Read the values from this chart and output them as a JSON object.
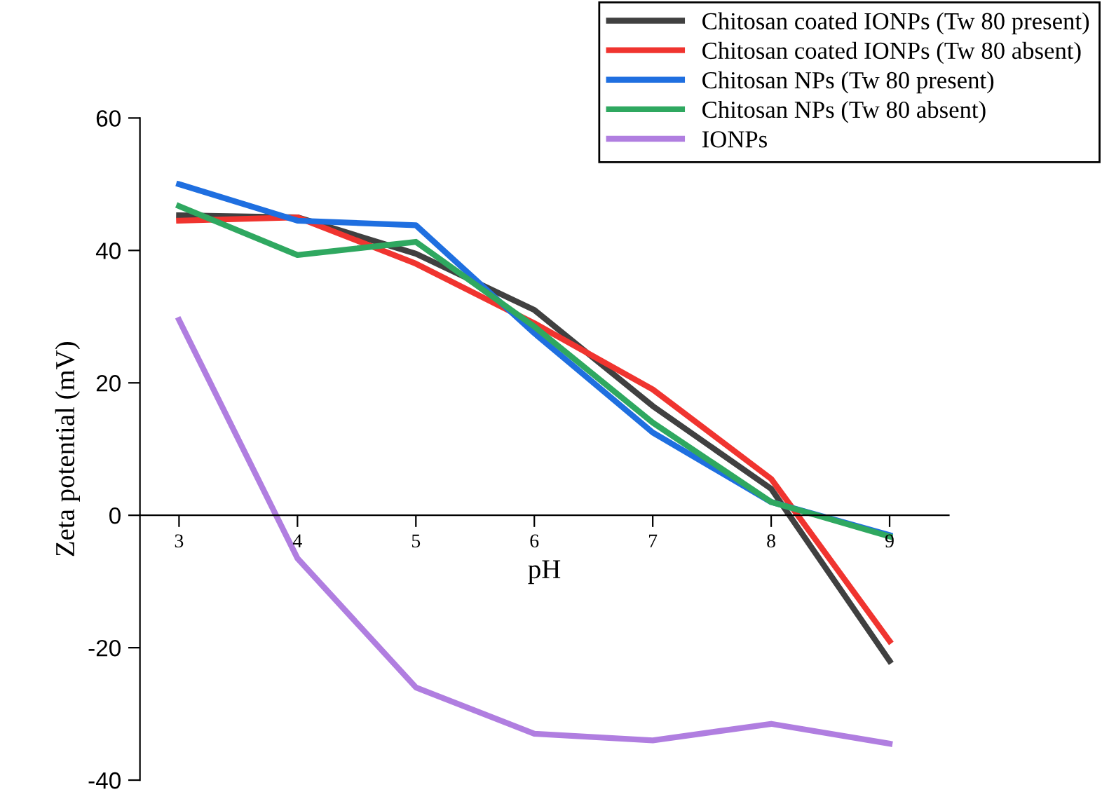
{
  "chart_data": {
    "type": "line",
    "xlabel": "pH",
    "ylabel": "Zeta potential (mV)",
    "x": [
      3,
      4,
      5,
      6,
      7,
      8,
      9
    ],
    "xlim": [
      2.67,
      9.5
    ],
    "xticks": [
      3,
      4,
      5,
      6,
      7,
      8,
      9
    ],
    "ylim": [
      -40,
      60
    ],
    "yticks": [
      -40,
      -20,
      0,
      20,
      40,
      60
    ],
    "grid": false,
    "legend": "top right",
    "marker": "none",
    "line_style": "solid",
    "series": [
      {
        "name": "Chitosan coated IONPs (Tw 80 present)",
        "color": "#404040",
        "values": [
          45.3,
          45,
          39.5,
          31,
          16.5,
          4,
          -22
        ]
      },
      {
        "name": "Chitosan coated IONPs (Tw 80 absent)",
        "color": "#f0342f",
        "values": [
          44.5,
          45,
          38,
          29,
          19,
          5.5,
          -19
        ]
      },
      {
        "name": "Chitosan NPs (Tw 80 present)",
        "color": "#1f6fe0",
        "values": [
          50,
          44.5,
          43.8,
          27.5,
          12.5,
          2,
          -3
        ]
      },
      {
        "name": "Chitosan NPs (Tw 80 absent)",
        "color": "#2fa860",
        "values": [
          46.7,
          39.3,
          41.3,
          28.5,
          14,
          2,
          -3.2
        ]
      },
      {
        "name": "IONPs",
        "color": "#b07ee0",
        "values": [
          29.5,
          -6.5,
          -26,
          -33,
          -34,
          -31.5,
          -34.5
        ]
      }
    ]
  }
}
